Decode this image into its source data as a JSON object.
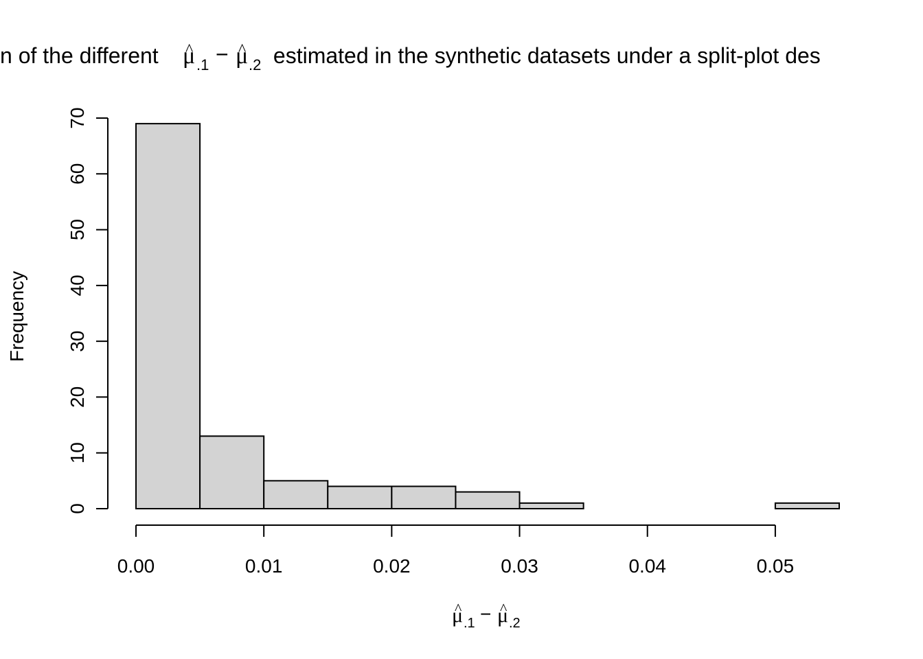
{
  "chart_data": {
    "type": "bar",
    "title": {
      "prefix": "n of the different ",
      "math": {
        "mu1": "μ",
        "sub1": ".1",
        "minus": "−",
        "mu2": "μ",
        "sub2": ".2",
        "hat": "^"
      },
      "suffix": " estimated in the synthetic datasets under a split-plot des"
    },
    "xlabel_math": {
      "mu1": "μ",
      "sub1": ".1",
      "minus": "−",
      "mu2": "μ",
      "sub2": ".2",
      "hat": "^"
    },
    "ylabel": "Frequency",
    "bin_edges": [
      0.0,
      0.005,
      0.01,
      0.015,
      0.02,
      0.025,
      0.03,
      0.035,
      0.04,
      0.045,
      0.05,
      0.055
    ],
    "values": [
      69,
      13,
      5,
      4,
      4,
      3,
      1,
      0,
      0,
      0,
      1
    ],
    "xlim": [
      0,
      0.055
    ],
    "ylim": [
      0,
      70
    ],
    "x_ticks": [
      0.0,
      0.01,
      0.02,
      0.03,
      0.04,
      0.05
    ],
    "x_tick_labels": [
      "0.00",
      "0.01",
      "0.02",
      "0.03",
      "0.04",
      "0.05"
    ],
    "y_ticks": [
      0,
      10,
      20,
      30,
      40,
      50,
      60,
      70
    ],
    "y_tick_labels": [
      "0",
      "10",
      "20",
      "30",
      "40",
      "50",
      "60",
      "70"
    ],
    "bar_fill": "#d3d3d3",
    "bar_stroke": "#000000",
    "grid": false,
    "legend": "none"
  }
}
